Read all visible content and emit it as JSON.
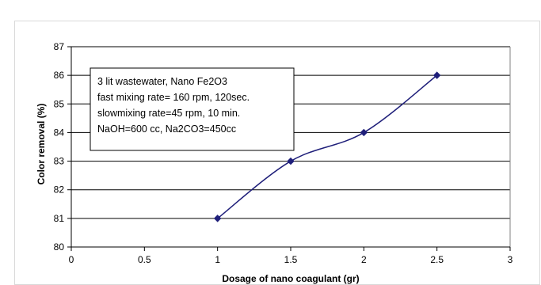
{
  "chart_data": {
    "type": "line",
    "title": "",
    "xlabel": "Dosage of nano coagulant (gr)",
    "ylabel": "Color removal (%)",
    "xlim": [
      0,
      3
    ],
    "ylim": [
      80,
      87
    ],
    "x_ticks": [
      "0",
      "0.5",
      "1",
      "1.5",
      "2",
      "2.5",
      "3"
    ],
    "y_ticks": [
      "80",
      "81",
      "82",
      "83",
      "84",
      "85",
      "86",
      "87"
    ],
    "grid": "horizontal",
    "legend": "none",
    "smooth": true,
    "series": [
      {
        "color": "#1f1f7a",
        "marker": "diamond",
        "x": [
          1,
          1.5,
          2,
          2.5
        ],
        "y": [
          81,
          83,
          84,
          86
        ]
      }
    ],
    "annotation": [
      "3 lit  wastewater, Nano Fe2O3",
      "fast mixing rate= 160 rpm, 120sec.",
      "slowmixing rate=45 rpm, 10 min.",
      "NaOH=600 cc, Na2CO3=450cc"
    ]
  }
}
